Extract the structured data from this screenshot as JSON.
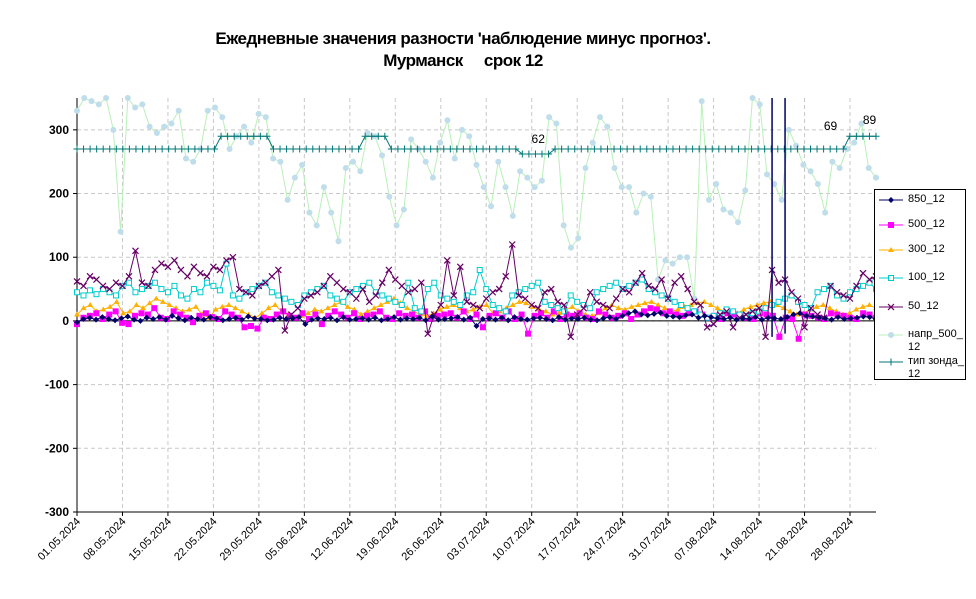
{
  "chart_data": {
    "type": "line",
    "title_line1": "Ежедневные значения разности 'наблюдение минус прогноз'.",
    "title_line2": "Мурманск     срок 12",
    "ylim": [
      -300,
      350
    ],
    "yticks": [
      -300,
      -200,
      -100,
      0,
      100,
      200,
      300
    ],
    "grid": true,
    "legend_position": "right",
    "x_start": "01.05.2024",
    "x_end": "02.09.2024",
    "x_tick_labels": [
      "01.05.2024",
      "08.05.2024",
      "15.05.2024",
      "22.05.2024",
      "29.05.2024",
      "05.06.2024",
      "12.06.2024",
      "19.06.2024",
      "26.06.2024",
      "03.07.2024",
      "10.07.2024",
      "17.07.2024",
      "24.07.2024",
      "31.07.2024",
      "07.08.2024",
      "14.08.2024",
      "21.08.2024",
      "28.08.2024"
    ],
    "annotations": [
      "62",
      "69",
      "89"
    ],
    "series": [
      {
        "name": "850_12",
        "color": "#000066",
        "marker": "diamond",
        "values": [
          -2,
          3,
          5,
          2,
          6,
          3,
          1,
          4,
          7,
          2,
          0,
          5,
          3,
          6,
          2,
          8,
          4,
          1,
          5,
          3,
          2,
          6,
          4,
          1,
          3,
          5,
          2,
          7,
          4,
          3,
          1,
          2,
          5,
          3,
          4,
          6,
          -5,
          2,
          4,
          3,
          5,
          1,
          6,
          2,
          3,
          4,
          2,
          5,
          1,
          3,
          6,
          2,
          4,
          3,
          5,
          1,
          7,
          2,
          3,
          4,
          6,
          2,
          5,
          -8,
          3,
          4,
          2,
          5,
          1,
          6,
          3,
          2,
          4,
          5,
          3,
          1,
          6,
          2,
          4,
          3,
          5,
          2,
          1,
          4,
          6,
          3,
          8,
          12,
          15,
          10,
          9,
          11,
          13,
          8,
          7,
          6,
          9,
          10,
          5,
          8,
          6,
          4,
          3,
          5,
          2,
          4,
          3,
          6,
          2,
          5,
          4,
          3,
          6,
          10,
          12,
          8,
          7,
          5,
          4,
          2,
          6,
          3,
          4,
          5,
          7,
          6,
          3
        ]
      },
      {
        "name": "500_12",
        "color": "#FF00FF",
        "marker": "square",
        "values": [
          -5,
          5,
          8,
          12,
          3,
          10,
          15,
          -3,
          -5,
          8,
          12,
          10,
          20,
          5,
          3,
          15,
          10,
          5,
          -2,
          8,
          12,
          6,
          3,
          15,
          10,
          5,
          -10,
          -8,
          -12,
          5,
          3,
          10,
          15,
          8,
          5,
          12,
          3,
          10,
          -5,
          8,
          15,
          10,
          5,
          12,
          3,
          8,
          10,
          15,
          5,
          3,
          12,
          8,
          10,
          5,
          15,
          3,
          8,
          10,
          12,
          5,
          15,
          3,
          10,
          -10,
          8,
          12,
          5,
          15,
          3,
          10,
          -20,
          8,
          12,
          5,
          15,
          3,
          10,
          8,
          12,
          5,
          3,
          15,
          10,
          5,
          8,
          12,
          3,
          10,
          15,
          20,
          18,
          12,
          15,
          10,
          8,
          12,
          15,
          10,
          5,
          8,
          3,
          12,
          10,
          8,
          5,
          3,
          12,
          10,
          8,
          -25,
          5,
          3,
          -28,
          10,
          8,
          5,
          3,
          12,
          10,
          8,
          5,
          3,
          12,
          10,
          5
        ]
      },
      {
        "name": "300_12",
        "color": "#FFB000",
        "marker": "triangle",
        "values": [
          10,
          20,
          25,
          15,
          18,
          22,
          30,
          12,
          15,
          25,
          20,
          28,
          35,
          30,
          25,
          20,
          15,
          18,
          22,
          10,
          5,
          18,
          22,
          25,
          20,
          15,
          10,
          5,
          12,
          20,
          25,
          15,
          10,
          5,
          8,
          12,
          18,
          15,
          20,
          25,
          30,
          22,
          18,
          10,
          15,
          20,
          25,
          30,
          35,
          28,
          20,
          15,
          10,
          8,
          12,
          18,
          22,
          25,
          20,
          15,
          18,
          22,
          25,
          12,
          15,
          20,
          25,
          30,
          28,
          22,
          18,
          15,
          10,
          12,
          18,
          22,
          15,
          10,
          8,
          12,
          20,
          25,
          20,
          18,
          22,
          25,
          28,
          30,
          25,
          20,
          15,
          18,
          22,
          25,
          28,
          30,
          25,
          20,
          15,
          10,
          12,
          18,
          22,
          25,
          28,
          30,
          25,
          20,
          15,
          10,
          12,
          18,
          22,
          25,
          20,
          15,
          10,
          12,
          18,
          22,
          25,
          20
        ]
      },
      {
        "name": "100_12",
        "color": "#00CCCC",
        "marker": "square-open",
        "values": [
          45,
          40,
          48,
          42,
          50,
          45,
          40,
          55,
          60,
          45,
          50,
          55,
          60,
          50,
          45,
          55,
          40,
          35,
          50,
          45,
          60,
          55,
          48,
          90,
          40,
          35,
          45,
          50,
          55,
          60,
          45,
          40,
          35,
          30,
          25,
          40,
          45,
          50,
          55,
          40,
          35,
          30,
          45,
          50,
          55,
          60,
          45,
          40,
          35,
          30,
          25,
          60,
          20,
          15,
          50,
          60,
          40,
          35,
          30,
          25,
          40,
          45,
          80,
          50,
          25,
          20,
          15,
          40,
          45,
          50,
          55,
          60,
          30,
          25,
          20,
          15,
          40,
          30,
          25,
          20,
          45,
          50,
          55,
          60,
          50,
          55,
          60,
          65,
          50,
          45,
          40,
          35,
          30,
          25,
          20,
          15,
          10,
          5,
          8,
          12,
          18,
          15,
          10,
          8,
          12,
          15,
          20,
          25,
          30,
          35,
          40,
          30,
          25,
          20,
          45,
          50,
          55,
          40,
          35,
          45,
          50,
          55,
          60,
          50
        ]
      },
      {
        "name": "50_12",
        "color": "#660066",
        "marker": "x",
        "values": [
          62,
          55,
          70,
          65,
          55,
          50,
          60,
          55,
          70,
          110,
          60,
          55,
          80,
          90,
          85,
          95,
          80,
          70,
          85,
          75,
          70,
          85,
          80,
          95,
          100,
          50,
          45,
          40,
          55,
          60,
          70,
          80,
          -15,
          10,
          20,
          35,
          40,
          45,
          55,
          70,
          60,
          50,
          45,
          35,
          50,
          30,
          40,
          60,
          80,
          65,
          55,
          45,
          50,
          60,
          -20,
          10,
          25,
          95,
          40,
          85,
          30,
          25,
          20,
          35,
          45,
          50,
          70,
          120,
          40,
          35,
          25,
          20,
          45,
          50,
          30,
          25,
          -25,
          10,
          20,
          45,
          30,
          25,
          20,
          35,
          50,
          45,
          60,
          75,
          55,
          50,
          65,
          35,
          60,
          70,
          50,
          30,
          25,
          -10,
          -5,
          10,
          15,
          -10,
          5,
          10,
          15,
          20,
          -25,
          80,
          60,
          65,
          45,
          35,
          -10,
          20,
          10,
          5,
          55,
          45,
          40,
          35,
          55,
          75,
          65,
          70
        ]
      },
      {
        "name": "напр_500_12",
        "color": "#BFDDEA",
        "line_color": "#B8F0B8",
        "marker": "circle",
        "values": [
          330,
          350,
          345,
          340,
          350,
          300,
          140,
          350,
          335,
          340,
          305,
          295,
          305,
          310,
          330,
          255,
          250,
          270,
          330,
          335,
          320,
          270,
          290,
          305,
          280,
          325,
          320,
          255,
          250,
          190,
          225,
          245,
          170,
          150,
          210,
          170,
          125,
          240,
          250,
          235,
          295,
          290,
          260,
          195,
          150,
          175,
          285,
          270,
          250,
          225,
          280,
          315,
          255,
          300,
          290,
          245,
          210,
          180,
          250,
          210,
          165,
          235,
          225,
          210,
          220,
          320,
          310,
          150,
          115,
          130,
          240,
          280,
          320,
          305,
          240,
          210,
          210,
          170,
          200,
          195,
          65,
          95,
          90,
          100,
          100,
          35,
          345,
          190,
          215,
          175,
          170,
          155,
          205,
          350,
          340,
          230,
          215,
          190,
          300,
          275,
          245,
          235,
          215,
          170,
          250,
          240,
          270,
          280,
          310,
          240,
          225
        ]
      },
      {
        "name": "тип зонда_12",
        "color": "#007777",
        "marker": "plus",
        "values": [
          270,
          270,
          270,
          270,
          270,
          270,
          270,
          270,
          270,
          270,
          270,
          270,
          270,
          270,
          270,
          270,
          270,
          270,
          270,
          270,
          270,
          270,
          290,
          290,
          290,
          290,
          290,
          290,
          290,
          290,
          270,
          270,
          270,
          270,
          270,
          270,
          270,
          270,
          270,
          270,
          270,
          270,
          270,
          270,
          290,
          290,
          290,
          290,
          270,
          270,
          270,
          270,
          270,
          270,
          270,
          270,
          270,
          270,
          270,
          270,
          270,
          270,
          270,
          270,
          270,
          270,
          270,
          270,
          262,
          262,
          262,
          262,
          262,
          270,
          270,
          270,
          270,
          270,
          270,
          270,
          270,
          270,
          270,
          270,
          270,
          270,
          270,
          270,
          270,
          270,
          270,
          270,
          270,
          270,
          270,
          270,
          270,
          270,
          270,
          270,
          270,
          270,
          270,
          270,
          270,
          270,
          270,
          270,
          270,
          270,
          270,
          270,
          270,
          270,
          270,
          270,
          270,
          270,
          290,
          290,
          290,
          290,
          290
        ]
      }
    ]
  }
}
